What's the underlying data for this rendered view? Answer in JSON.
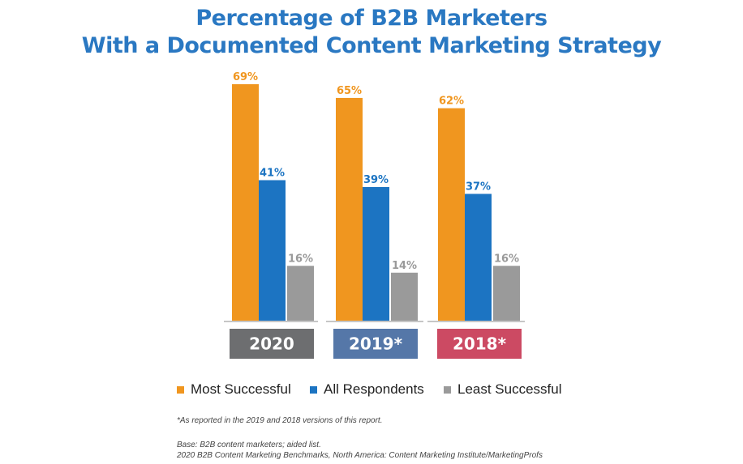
{
  "title_line1": "Percentage of B2B Marketers",
  "title_line2": "With a Documented Content Marketing Strategy",
  "chart_data": {
    "type": "bar",
    "categories": [
      "2020",
      "2019*",
      "2018*"
    ],
    "category_colors": [
      "#6d6e70",
      "#5577a8",
      "#cc4a63"
    ],
    "series": [
      {
        "name": "Most Successful",
        "color": "#f0961f",
        "values": [
          69,
          65,
          62
        ]
      },
      {
        "name": "All Respondents",
        "color": "#1c74c2",
        "values": [
          41,
          39,
          37
        ]
      },
      {
        "name": "Least Successful",
        "color": "#9a9a9a",
        "values": [
          16,
          14,
          16
        ]
      }
    ],
    "value_labels": [
      [
        "69%",
        "41%",
        "16%"
      ],
      [
        "65%",
        "39%",
        "14%"
      ],
      [
        "62%",
        "37%",
        "16%"
      ]
    ],
    "ylim": [
      0,
      69
    ],
    "legend_position": "bottom",
    "grid": false
  },
  "footnotes": {
    "asterisk": "*As reported in the 2019 and 2018 versions of this report.",
    "base": "Base: B2B content marketers; aided list.",
    "source": "2020 B2B Content Marketing Benchmarks, North America: Content Marketing Institute/MarketingProfs"
  }
}
